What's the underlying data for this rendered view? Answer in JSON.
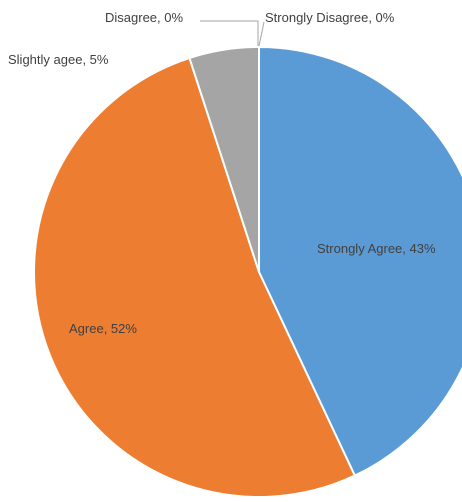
{
  "chart_data": {
    "type": "pie",
    "slices": [
      {
        "label": "Strongly Agree",
        "value": 43,
        "display": "Strongly Agree, 43%",
        "color": "#5b9bd5"
      },
      {
        "label": "Agree",
        "value": 52,
        "display": "Agree, 52%",
        "color": "#ed7d31"
      },
      {
        "label": "Slightly agee",
        "value": 5,
        "display": "Slightly agee, 5%",
        "color": "#a5a5a5"
      },
      {
        "label": "Disagree",
        "value": 0,
        "display": "Disagree, 0%",
        "color": "#ffc000"
      },
      {
        "label": "Strongly Disagree",
        "value": 0,
        "display": "Strongly Disagree, 0%",
        "color": "#4472c4"
      }
    ],
    "start": "12 o'clock",
    "direction": "clockwise",
    "legend": "none",
    "data_labels": "category, percent"
  }
}
